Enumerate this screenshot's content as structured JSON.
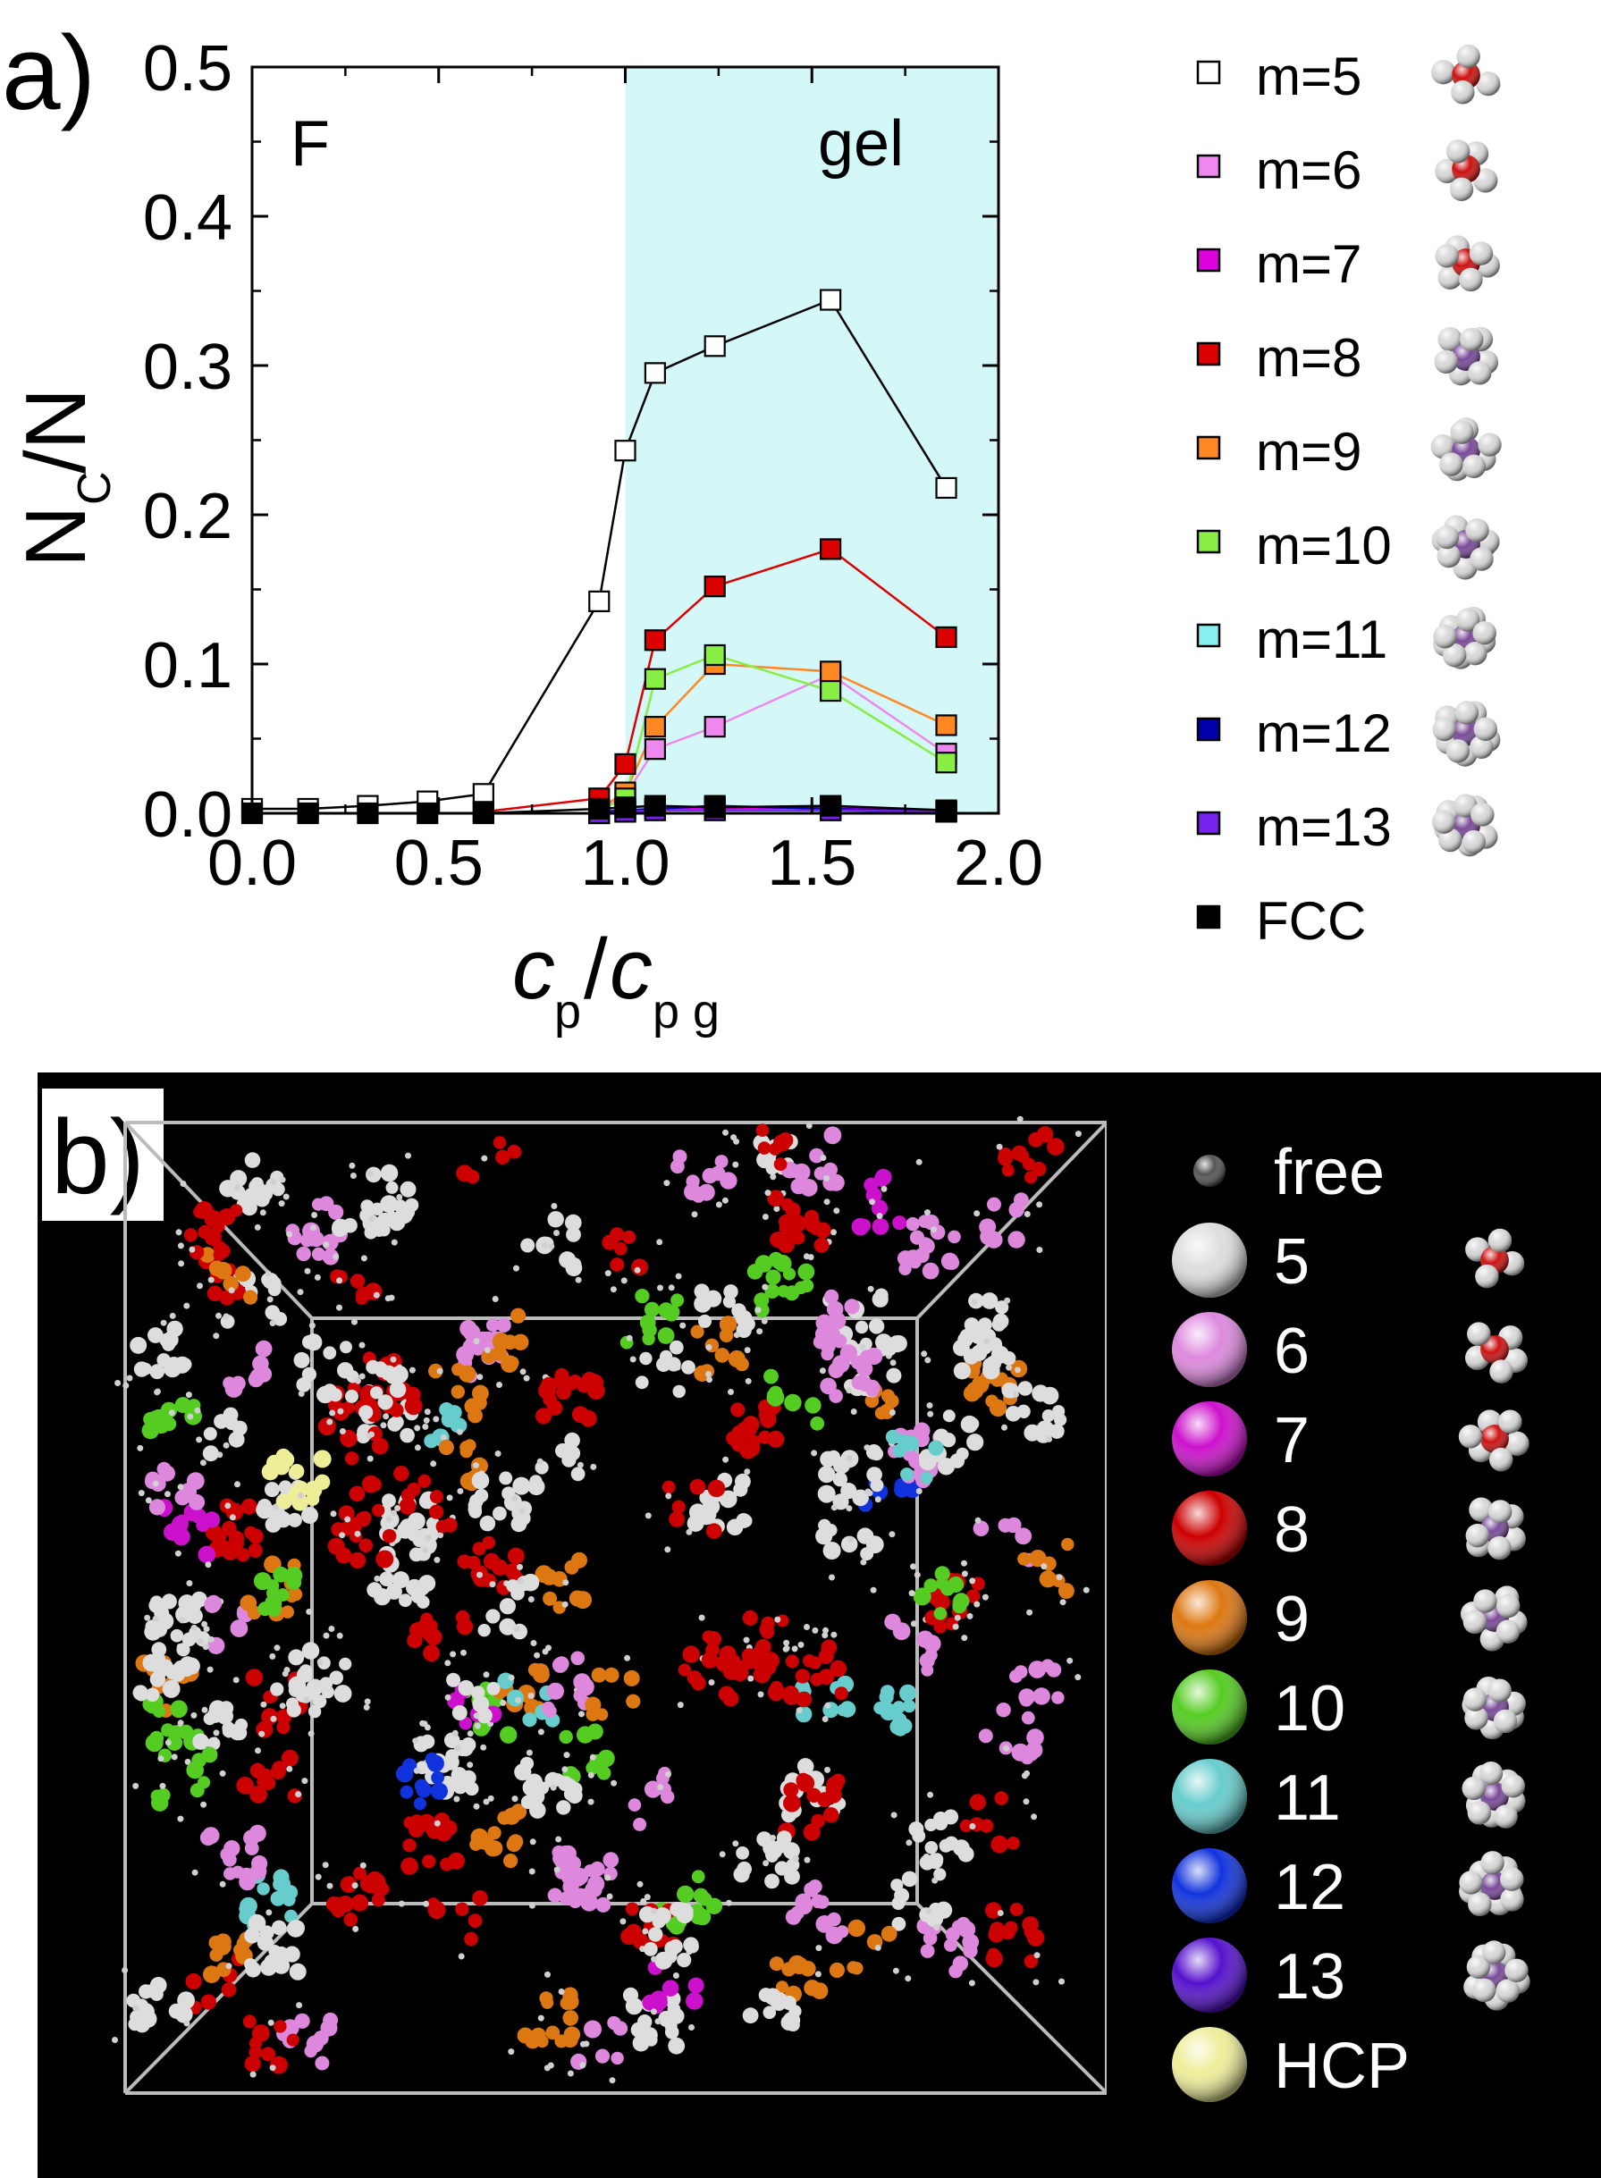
{
  "panel_a_label": "a)",
  "panel_b_label": "b)",
  "chart_data": {
    "type": "line",
    "xlabel": "c_p/c_pg",
    "xlabel_parts": {
      "c1": "c",
      "sub1": "p",
      "slash": "/",
      "c2": "c",
      "sub2": "p g"
    },
    "ylabel": "N_C/N",
    "ylabel_parts": {
      "main1": "N",
      "sub": "C",
      "main2": "/N"
    },
    "xlim": [
      0.0,
      2.0
    ],
    "ylim": [
      0.0,
      0.5
    ],
    "xticks": [
      "0.0",
      "0.5",
      "1.0",
      "1.5",
      "2.0"
    ],
    "yticks": [
      "0.0",
      "0.1",
      "0.2",
      "0.3",
      "0.4",
      "0.5"
    ],
    "regions": [
      {
        "label": "F",
        "x_start": 0.0,
        "x_end": 1.0,
        "color": "#ffffff"
      },
      {
        "label": "gel",
        "x_start": 1.0,
        "x_end": 2.0,
        "color": "#d4f8f8"
      }
    ],
    "legend_position": "right-outside",
    "series": [
      {
        "name": "m=5",
        "color": "#ffffff",
        "edge": "#000000",
        "line": "#000000",
        "x": [
          0.0,
          0.15,
          0.31,
          0.47,
          0.62,
          0.93,
          1.0,
          1.08,
          1.24,
          1.55,
          1.86
        ],
        "y": [
          0.003,
          0.003,
          0.005,
          0.008,
          0.013,
          0.142,
          0.243,
          0.295,
          0.313,
          0.344,
          0.218
        ]
      },
      {
        "name": "m=6",
        "color": "#ee88ee",
        "edge": "#000000",
        "line": "#ee88ee",
        "x": [
          0.93,
          1.0,
          1.08,
          1.24,
          1.55,
          1.86
        ],
        "y": [
          0.003,
          0.012,
          0.043,
          0.058,
          0.093,
          0.04
        ]
      },
      {
        "name": "m=7",
        "color": "#dd00dd",
        "edge": "#000000",
        "line": "#dd00dd",
        "x": [
          0.93,
          1.0,
          1.08,
          1.24,
          1.55,
          1.86
        ],
        "y": [
          0.001,
          0.002,
          0.003,
          0.003,
          0.004,
          0.002
        ]
      },
      {
        "name": "m=8",
        "color": "#dd0000",
        "edge": "#000000",
        "line": "#dd0000",
        "x": [
          0.62,
          0.93,
          1.0,
          1.08,
          1.24,
          1.55,
          1.86
        ],
        "y": [
          0.001,
          0.01,
          0.033,
          0.116,
          0.152,
          0.177,
          0.118
        ]
      },
      {
        "name": "m=9",
        "color": "#ff8822",
        "edge": "#000000",
        "line": "#ff8822",
        "x": [
          0.93,
          1.0,
          1.08,
          1.24,
          1.55,
          1.86
        ],
        "y": [
          0.003,
          0.014,
          0.058,
          0.1,
          0.095,
          0.059
        ]
      },
      {
        "name": "m=10",
        "color": "#88ee44",
        "edge": "#000000",
        "line": "#88ee44",
        "x": [
          0.93,
          1.0,
          1.08,
          1.24,
          1.55,
          1.86
        ],
        "y": [
          0.002,
          0.01,
          0.09,
          0.106,
          0.082,
          0.034
        ]
      },
      {
        "name": "m=11",
        "color": "#88eeee",
        "edge": "#000000",
        "line": "#88eeee",
        "x": [
          0.93,
          1.0,
          1.08,
          1.24,
          1.55,
          1.86
        ],
        "y": [
          0.0,
          0.001,
          0.002,
          0.002,
          0.002,
          0.001
        ]
      },
      {
        "name": "m=12",
        "color": "#0000aa",
        "edge": "#000000",
        "line": "#0000aa",
        "x": [
          0.93,
          1.0,
          1.08,
          1.24,
          1.55,
          1.86
        ],
        "y": [
          0.001,
          0.002,
          0.003,
          0.005,
          0.003,
          0.001
        ]
      },
      {
        "name": "m=13",
        "color": "#7722ee",
        "edge": "#000000",
        "line": "#7722ee",
        "x": [
          0.93,
          1.0,
          1.08,
          1.24,
          1.55,
          1.86
        ],
        "y": [
          0.0,
          0.001,
          0.002,
          0.002,
          0.002,
          0.001
        ]
      },
      {
        "name": "FCC",
        "color": "#000000",
        "edge": "#000000",
        "line": "#000000",
        "x": [
          0.0,
          0.15,
          0.31,
          0.47,
          0.62,
          0.93,
          1.0,
          1.08,
          1.24,
          1.55,
          1.86
        ],
        "y": [
          0.0,
          0.0,
          0.0,
          0.0,
          0.0,
          0.003,
          0.004,
          0.005,
          0.004,
          0.005,
          0.002
        ]
      }
    ]
  },
  "legend_b": [
    {
      "label": "free",
      "color": "#555555",
      "small": true
    },
    {
      "label": "5",
      "color": "#dddddd"
    },
    {
      "label": "6",
      "color": "#dd88dd"
    },
    {
      "label": "7",
      "color": "#cc11cc"
    },
    {
      "label": "8",
      "color": "#cc0000"
    },
    {
      "label": "9",
      "color": "#dd7711"
    },
    {
      "label": "10",
      "color": "#55cc22"
    },
    {
      "label": "11",
      "color": "#66cccc"
    },
    {
      "label": "12",
      "color": "#1133dd"
    },
    {
      "label": "13",
      "color": "#5511cc"
    },
    {
      "label": "HCP",
      "color": "#eeee99"
    }
  ],
  "snapshot_colors": [
    "#dddddd",
    "#dd88dd",
    "#cc11cc",
    "#cc0000",
    "#dd7711",
    "#55cc22",
    "#66cccc",
    "#1133dd",
    "#5511cc",
    "#eeee99"
  ],
  "cluster_icon_colors": {
    "center_red": "#cc1111",
    "center_purple": "#7a4a99",
    "outer": "#d8d8d8"
  }
}
